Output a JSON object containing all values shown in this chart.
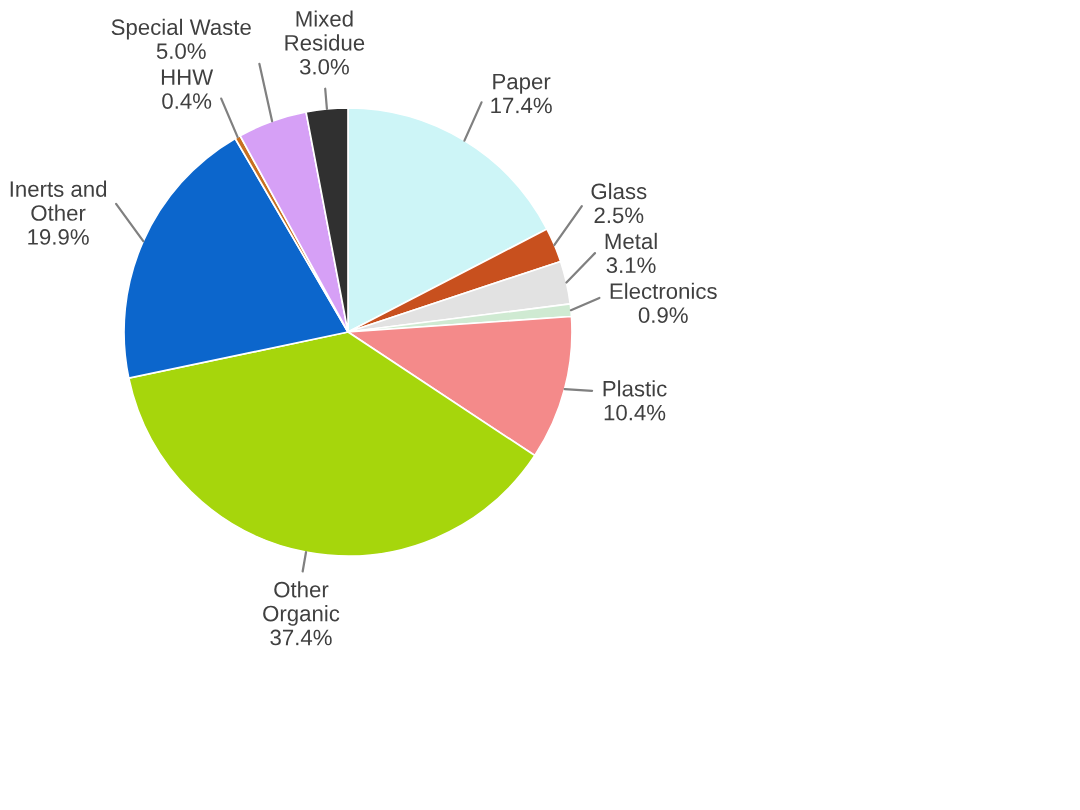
{
  "chart_data": {
    "type": "pie",
    "categories": [
      "Paper",
      "Glass",
      "Metal",
      "Electronics",
      "Plastic",
      "Other\nOrganic",
      "Inerts and\nOther",
      "HHW",
      "Special Waste",
      "Mixed\nResidue"
    ],
    "values": [
      17.4,
      2.5,
      3.1,
      0.9,
      10.4,
      37.4,
      19.9,
      0.4,
      5.0,
      3.0
    ],
    "value_labels": [
      "17.4%",
      "2.5%",
      "3.1%",
      "0.9%",
      "10.4%",
      "37.4%",
      "19.9%",
      "0.4%",
      "5.0%",
      "3.0%"
    ],
    "colors": [
      "#cdf5f7",
      "#c8501e",
      "#e2e2e2",
      "#cfead2",
      "#f48a8a",
      "#a6d60c",
      "#0c66cc",
      "#c87020",
      "#d6a0f6",
      "#303030"
    ]
  }
}
